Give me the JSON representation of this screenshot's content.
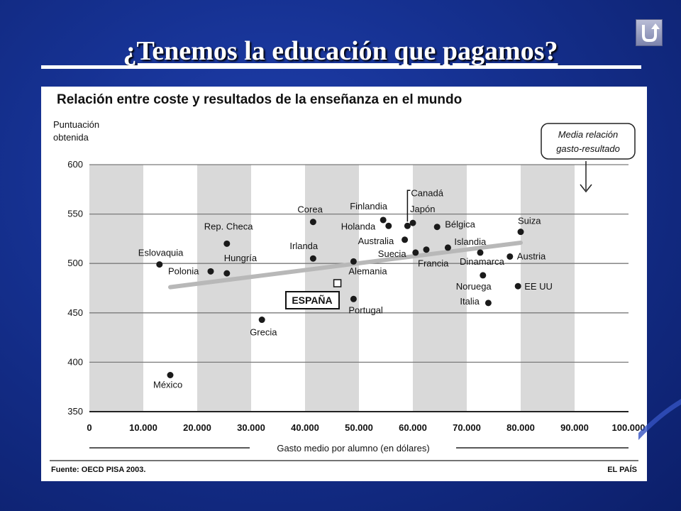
{
  "slide": {
    "title": "¿Tenemos la educación que pagamos?"
  },
  "nav": {
    "back_icon": "return-arrow-icon"
  },
  "colors": {
    "background": "#15308f",
    "bands": "#d9d9d9",
    "trend": "#b8b8b8",
    "points": "#1a1a1a"
  },
  "chart_data": {
    "type": "scatter",
    "title": "Relación entre coste y resultados de la enseñanza en el mundo",
    "ylabel": "Puntuación obtenida",
    "xlabel": "Gasto medio por alumno (en dólares)",
    "source": "Fuente: OECD PISA 2003.",
    "credit": "EL PAÍS",
    "xlim": [
      0,
      100000
    ],
    "ylim": [
      350,
      600
    ],
    "x_ticks": [
      "0",
      "10.000",
      "20.000",
      "30.000",
      "40.000",
      "50.000",
      "60.000",
      "70.000",
      "80.000",
      "90.000",
      "100.000"
    ],
    "y_ticks": [
      "350",
      "400",
      "450",
      "500",
      "550",
      "600"
    ],
    "grid": true,
    "annotation": "Media relación gasto-resultado",
    "highlight": {
      "label": "ESPAÑA",
      "x": 46000,
      "y": 480
    },
    "trend": {
      "x": [
        15000,
        80000
      ],
      "y": [
        476,
        521
      ]
    },
    "points": [
      {
        "label": "Eslovaquia",
        "x": 13000,
        "y": 499
      },
      {
        "label": "Polonia",
        "x": 22500,
        "y": 492
      },
      {
        "label": "Rep. Checa",
        "x": 25500,
        "y": 520
      },
      {
        "label": "Hungría",
        "x": 25500,
        "y": 490
      },
      {
        "label": "México",
        "x": 15000,
        "y": 387
      },
      {
        "label": "Grecia",
        "x": 32000,
        "y": 443
      },
      {
        "label": "Corea",
        "x": 41500,
        "y": 542
      },
      {
        "label": "Irlanda",
        "x": 41500,
        "y": 505
      },
      {
        "label": "Alemania",
        "x": 49000,
        "y": 502
      },
      {
        "label": "Portugal",
        "x": 49000,
        "y": 464
      },
      {
        "label": "Finlandia",
        "x": 54500,
        "y": 544
      },
      {
        "label": "Holanda",
        "x": 55500,
        "y": 538
      },
      {
        "label": "Australia",
        "x": 58500,
        "y": 524
      },
      {
        "label": "Canadá",
        "x": 59000,
        "y": 538
      },
      {
        "label": "Japón",
        "x": 60000,
        "y": 541
      },
      {
        "label": "Suecia",
        "x": 60500,
        "y": 511
      },
      {
        "label": "Bélgica",
        "x": 64500,
        "y": 537
      },
      {
        "label": "Francia",
        "x": 62500,
        "y": 514
      },
      {
        "label": "Islandia",
        "x": 66500,
        "y": 516
      },
      {
        "label": "Dinamarca",
        "x": 72500,
        "y": 511
      },
      {
        "label": "Noruega",
        "x": 73000,
        "y": 488
      },
      {
        "label": "Italia",
        "x": 74000,
        "y": 460
      },
      {
        "label": "Suiza",
        "x": 80000,
        "y": 532
      },
      {
        "label": "Austria",
        "x": 78000,
        "y": 507
      },
      {
        "label": "EE UU",
        "x": 79500,
        "y": 477
      }
    ]
  }
}
